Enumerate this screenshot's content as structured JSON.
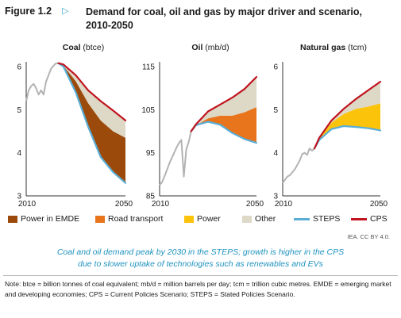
{
  "figure": {
    "label": "Figure 1.2",
    "title": "Demand for coal, oil and gas by major driver and scenario, 2010-2050"
  },
  "colors": {
    "power_emde": "#9b4a0b",
    "road_transport": "#e8741c",
    "power": "#fcc30b",
    "other": "#ded8c6",
    "steps": "#5aaed6",
    "cps": "#c0141f",
    "history": "#b3b3b3"
  },
  "legend": [
    {
      "label": "Power in EMDE",
      "kind": "area",
      "color_key": "power_emde"
    },
    {
      "label": "Road transport",
      "kind": "area",
      "color_key": "road_transport"
    },
    {
      "label": "Power",
      "kind": "area",
      "color_key": "power"
    },
    {
      "label": "Other",
      "kind": "area",
      "color_key": "other"
    },
    {
      "label": "STEPS",
      "kind": "line",
      "color_key": "steps"
    },
    {
      "label": "CPS",
      "kind": "line",
      "color_key": "cps"
    }
  ],
  "source": "IEA. CC BY 4.0.",
  "caption": {
    "line1": "Coal and oil demand peak by 2030 in the STEPS; growth is higher in the CPS",
    "line2": "due to slower uptake of technologies such as renewables and EVs"
  },
  "note": "Note: btce = billion tonnes of coal equivalent; mb/d = million barrels per day; tcm = trillion cubic metres. EMDE = emerging market and developing economies; CPS = Current Policies Scenario; STEPS = Stated Policies Scenario.",
  "chart_data": [
    {
      "type": "area",
      "title_bold": "Coal",
      "title_unit": "(btce)",
      "xlim": [
        2010,
        2050
      ],
      "ylim": [
        3,
        6
      ],
      "yticks": [
        3,
        4,
        5,
        6
      ],
      "xtick_labels": [
        "2010",
        "2050"
      ],
      "history": {
        "x": [
          2010,
          2011,
          2012,
          2013,
          2014,
          2015,
          2016,
          2017,
          2018,
          2019,
          2020,
          2021,
          2022,
          2023
        ],
        "values": [
          5.2,
          5.45,
          5.55,
          5.6,
          5.5,
          5.35,
          5.45,
          5.35,
          5.65,
          5.8,
          5.95,
          6.02,
          6.08,
          6.08
        ]
      },
      "series": [
        {
          "name": "STEPS",
          "x": [
            2023,
            2025,
            2030,
            2035,
            2040,
            2045,
            2050
          ],
          "values": [
            6.08,
            6.0,
            5.4,
            4.6,
            3.9,
            3.55,
            3.3
          ]
        },
        {
          "name": "CPS",
          "x": [
            2023,
            2025,
            2030,
            2035,
            2040,
            2045,
            2050
          ],
          "values": [
            6.08,
            6.05,
            5.8,
            5.45,
            5.2,
            4.98,
            4.75
          ]
        }
      ],
      "stack": [
        {
          "name": "Power in EMDE",
          "x": [
            2023,
            2025,
            2030,
            2035,
            2040,
            2045,
            2050
          ],
          "values": [
            0,
            0.02,
            0.26,
            0.55,
            0.85,
            0.95,
            1.05
          ]
        },
        {
          "name": "Other",
          "x": [
            2023,
            2025,
            2030,
            2035,
            2040,
            2045,
            2050
          ],
          "values": [
            0,
            0.03,
            0.14,
            0.3,
            0.45,
            0.48,
            0.4
          ]
        }
      ]
    },
    {
      "type": "area",
      "title_bold": "Oil",
      "title_unit": "(mb/d)",
      "xlim": [
        2010,
        2050
      ],
      "ylim": [
        85,
        115
      ],
      "yticks": [
        85,
        95,
        105,
        115
      ],
      "xtick_labels": [
        "2010",
        "2050"
      ],
      "history": {
        "x": [
          2010,
          2011,
          2012,
          2013,
          2014,
          2015,
          2016,
          2017,
          2018,
          2019,
          2020,
          2021,
          2022,
          2023
        ],
        "values": [
          87.5,
          88.2,
          89.5,
          91.0,
          92.5,
          93.8,
          95.0,
          96.2,
          97.3,
          98.0,
          89.5,
          95.8,
          97.5,
          100.0
        ]
      },
      "series": [
        {
          "name": "STEPS",
          "x": [
            2023,
            2025,
            2030,
            2035,
            2040,
            2045,
            2050
          ],
          "values": [
            100.0,
            101.4,
            102.2,
            101.5,
            99.6,
            98.2,
            97.3
          ]
        },
        {
          "name": "CPS",
          "x": [
            2023,
            2025,
            2030,
            2035,
            2040,
            2045,
            2050
          ],
          "values": [
            100.0,
            101.6,
            104.6,
            106.2,
            107.8,
            109.8,
            112.6
          ]
        }
      ],
      "stack": [
        {
          "name": "Road transport",
          "x": [
            2023,
            2025,
            2030,
            2035,
            2040,
            2045,
            2050
          ],
          "values": [
            0,
            0.0,
            0.8,
            2.1,
            4.0,
            6.2,
            8.3
          ]
        },
        {
          "name": "Other",
          "x": [
            2023,
            2025,
            2030,
            2035,
            2040,
            2045,
            2050
          ],
          "values": [
            0,
            0.2,
            1.6,
            2.6,
            4.2,
            5.4,
            7.0
          ]
        }
      ]
    },
    {
      "type": "area",
      "title_bold": "Natural gas",
      "title_unit": "(tcm)",
      "xlim": [
        2010,
        2050
      ],
      "ylim": [
        3,
        6
      ],
      "yticks": [
        3,
        4,
        5,
        6
      ],
      "xtick_labels": [
        "2010",
        "2050"
      ],
      "history": {
        "x": [
          2010,
          2011,
          2012,
          2013,
          2014,
          2015,
          2016,
          2017,
          2018,
          2019,
          2020,
          2021,
          2022,
          2023
        ],
        "values": [
          3.3,
          3.38,
          3.45,
          3.48,
          3.55,
          3.62,
          3.72,
          3.82,
          3.97,
          4.0,
          3.95,
          4.1,
          4.05,
          4.1
        ]
      },
      "series": [
        {
          "name": "STEPS",
          "x": [
            2023,
            2025,
            2030,
            2035,
            2040,
            2045,
            2050
          ],
          "values": [
            4.1,
            4.3,
            4.55,
            4.62,
            4.6,
            4.57,
            4.52
          ]
        },
        {
          "name": "CPS",
          "x": [
            2023,
            2025,
            2030,
            2035,
            2040,
            2045,
            2050
          ],
          "values": [
            4.1,
            4.35,
            4.75,
            5.02,
            5.25,
            5.45,
            5.65
          ]
        }
      ],
      "stack": [
        {
          "name": "Power",
          "x": [
            2023,
            2025,
            2030,
            2035,
            2040,
            2045,
            2050
          ],
          "values": [
            0,
            0.04,
            0.15,
            0.28,
            0.42,
            0.5,
            0.63
          ]
        },
        {
          "name": "Other",
          "x": [
            2023,
            2025,
            2030,
            2035,
            2040,
            2045,
            2050
          ],
          "values": [
            0,
            0.01,
            0.05,
            0.12,
            0.23,
            0.38,
            0.5
          ]
        }
      ]
    }
  ]
}
